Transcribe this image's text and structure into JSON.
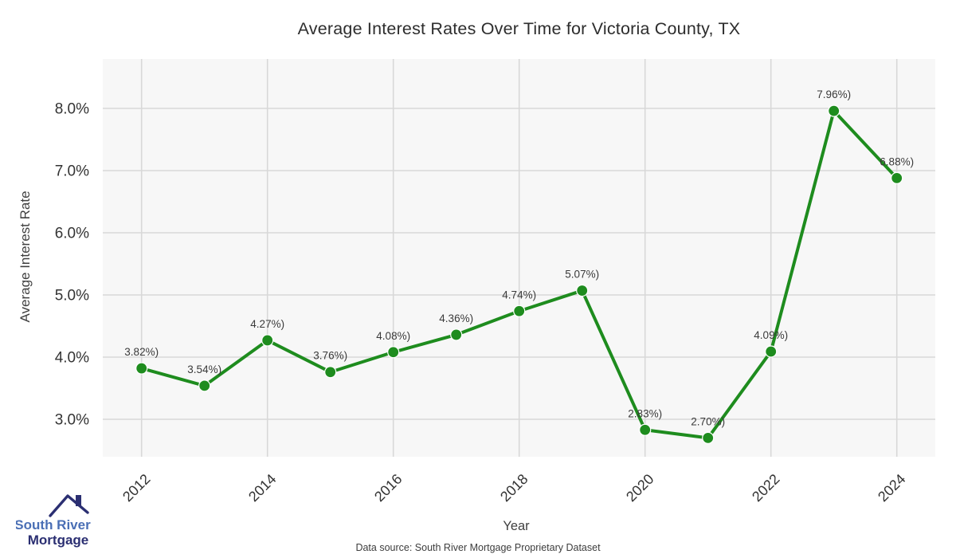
{
  "header": {
    "title": "Average Interest Rates Over Time for Victoria County, TX"
  },
  "chart_data": {
    "type": "line",
    "title": "Average Interest Rates Over Time for Victoria County, TX",
    "xlabel": "Year",
    "ylabel": "Average Interest Rate",
    "x": [
      2012,
      2013,
      2014,
      2015,
      2016,
      2017,
      2018,
      2019,
      2020,
      2021,
      2022,
      2023,
      2024
    ],
    "values": [
      3.82,
      3.54,
      4.27,
      3.76,
      4.08,
      4.36,
      4.74,
      5.07,
      2.83,
      2.7,
      4.09,
      7.96,
      6.88
    ],
    "point_labels": [
      "3.82%)",
      "3.54%)",
      "4.27%)",
      "3.76%)",
      "4.08%)",
      "4.36%)",
      "4.74%)",
      "5.07%)",
      "2.83%)",
      "2.70%)",
      "4.09%)",
      "7.96%)",
      "6.88%)"
    ],
    "yticks": [
      3.0,
      4.0,
      5.0,
      6.0,
      7.0,
      8.0
    ],
    "ytick_labels": [
      "3.0%",
      "4.0%",
      "5.0%",
      "6.0%",
      "7.0%",
      "8.0%"
    ],
    "xticks": [
      2012,
      2014,
      2016,
      2018,
      2020,
      2022,
      2024
    ],
    "ylim": [
      2.35,
      8.75
    ],
    "grid": true,
    "legend": null,
    "line_color": "#1e8c1e",
    "marker_color": "#1e8c1e",
    "plot_bg_color": "#f7f7f7",
    "grid_color": "#d8d8d8",
    "tick_label_color": "#333333",
    "point_label_color": "#3a3a3a"
  },
  "footer": {
    "source": "Data source: South River Mortgage Proprietary Dataset"
  },
  "logo": {
    "line1": "South River",
    "line2": "Mortgage",
    "icon": "house-roof-icon",
    "color_primary": "#4a6fb5",
    "color_secondary": "#2b2f72"
  }
}
